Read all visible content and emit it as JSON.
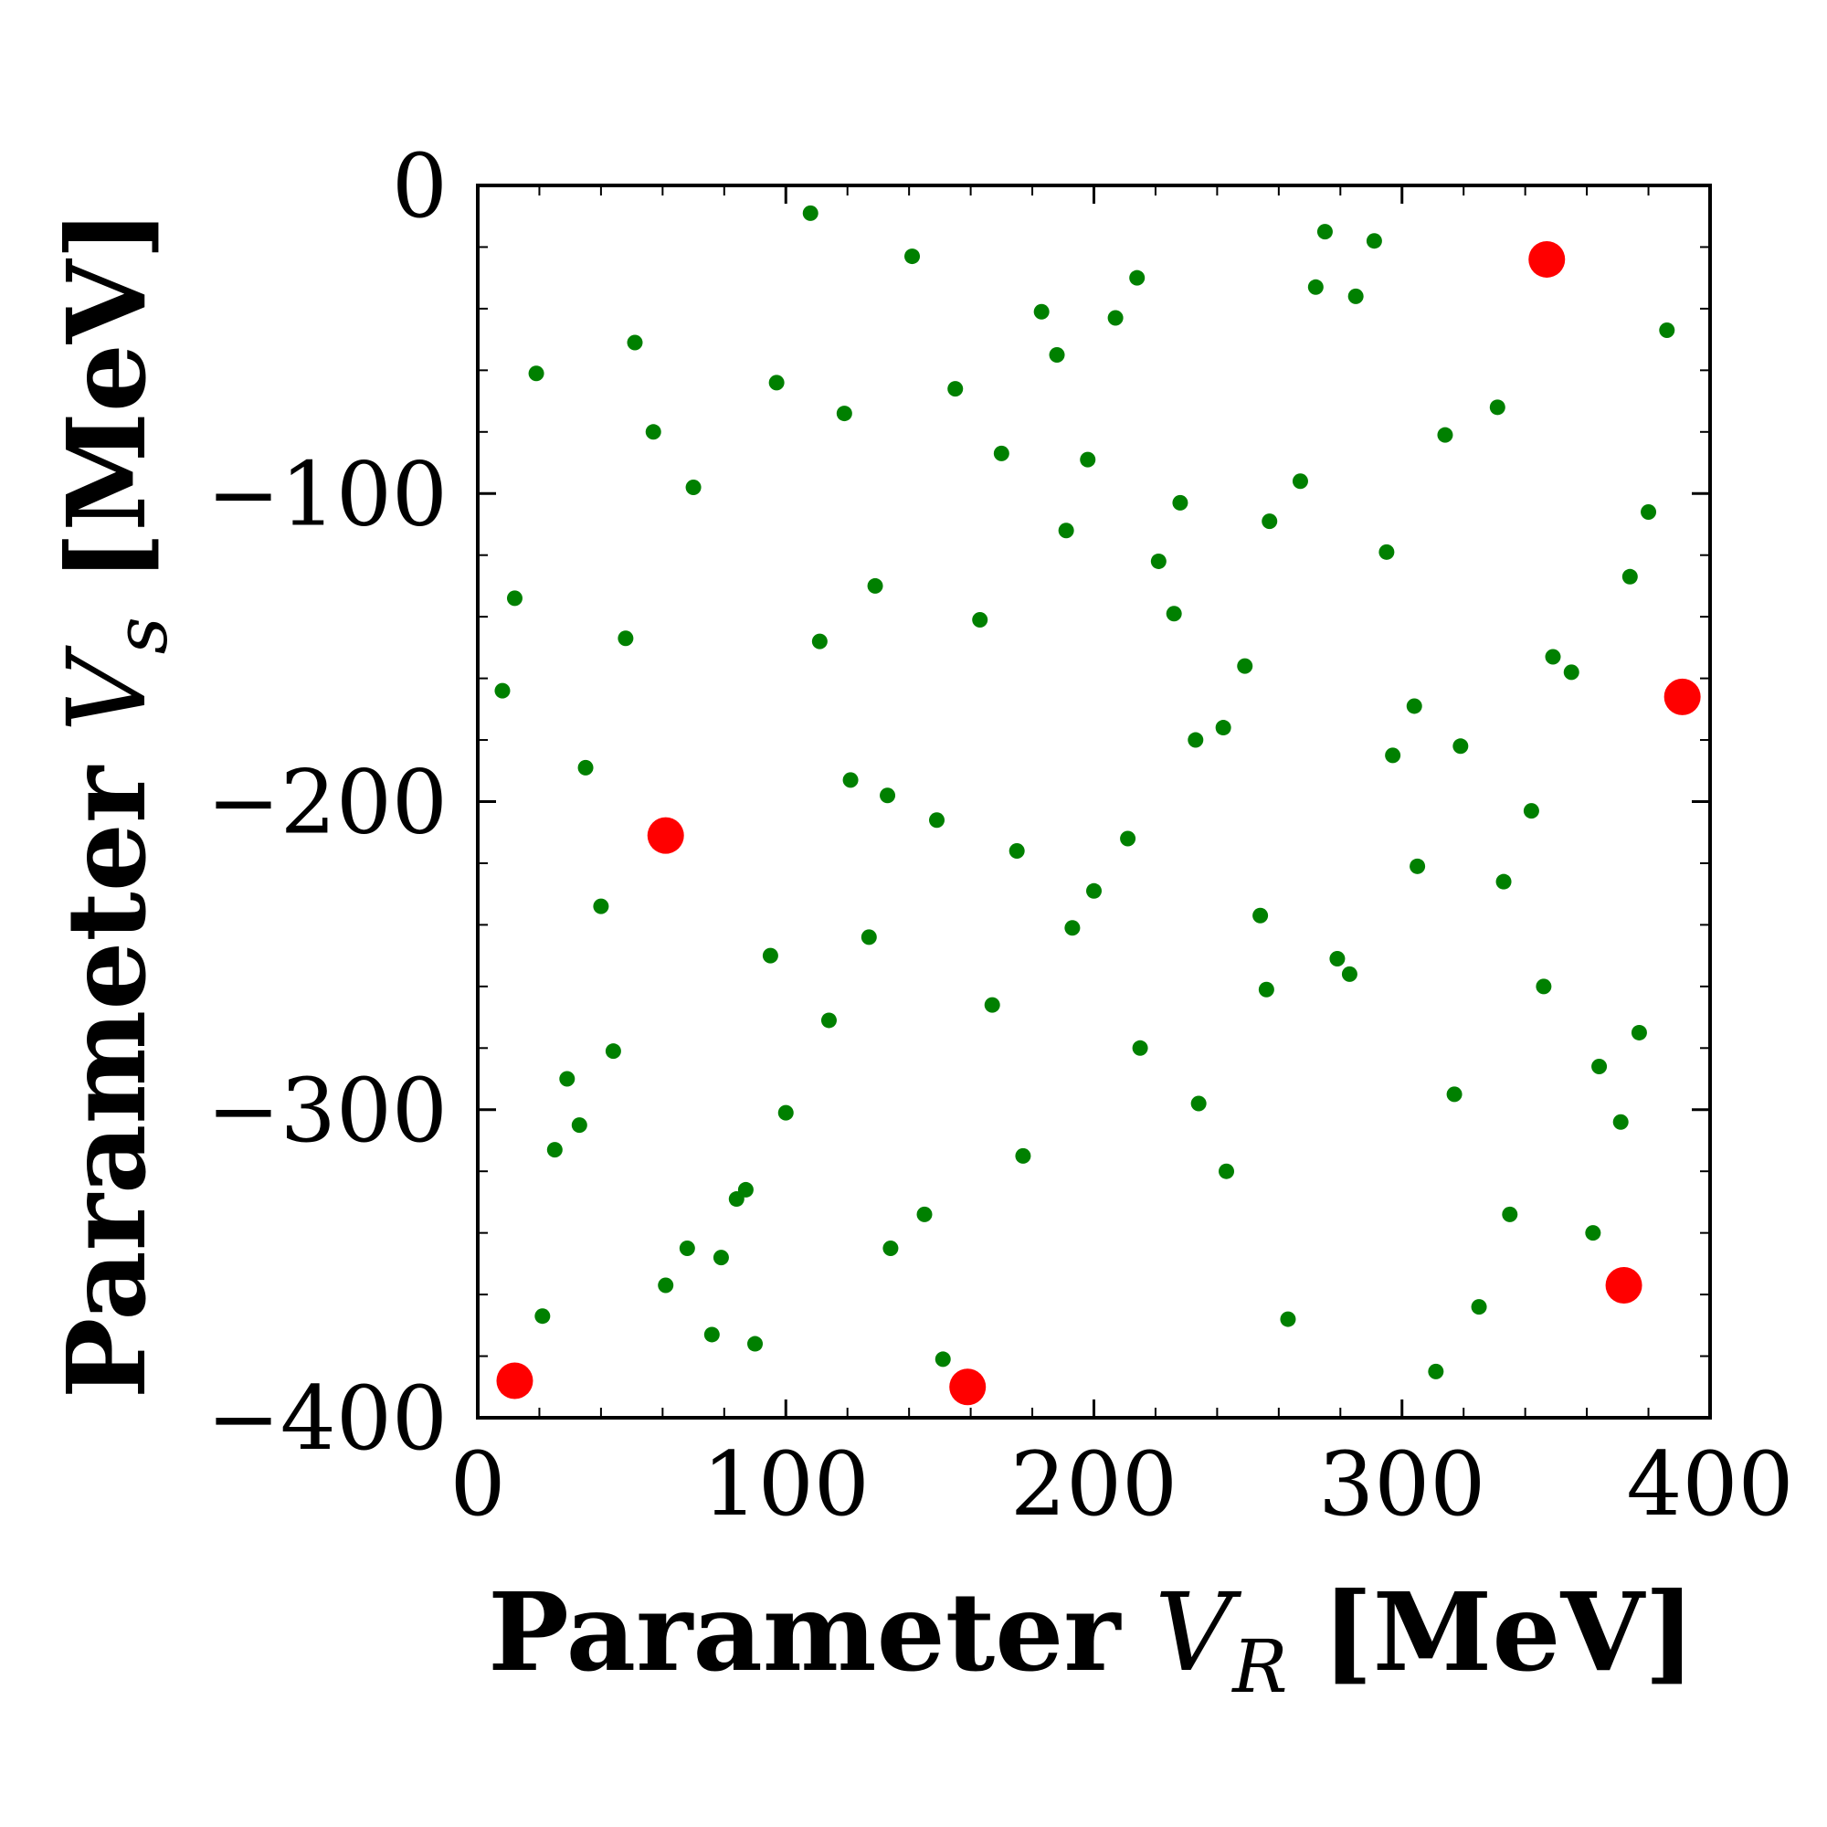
{
  "chart_data": {
    "type": "scatter",
    "xlabel": {
      "prefix": "Parameter",
      "symbol": "V",
      "subscript": "R",
      "unit": "[MeV]"
    },
    "ylabel": {
      "prefix": "Parameter",
      "symbol": "V",
      "subscript": "s",
      "unit": "[MeV]"
    },
    "xlim": [
      0,
      400
    ],
    "ylim": [
      -400,
      0
    ],
    "xticks": [
      {
        "value": 0,
        "label": "0"
      },
      {
        "value": 100,
        "label": "100"
      },
      {
        "value": 200,
        "label": "200"
      },
      {
        "value": 300,
        "label": "300"
      },
      {
        "value": 400,
        "label": "400"
      }
    ],
    "yticks": [
      {
        "value": 0,
        "label": "0"
      },
      {
        "value": -100,
        "label": "−100"
      },
      {
        "value": -200,
        "label": "−200"
      },
      {
        "value": -300,
        "label": "−300"
      },
      {
        "value": -400,
        "label": "−400"
      }
    ],
    "minor_tick_step": 20,
    "grid": false,
    "series": [
      {
        "color": "#008000",
        "marker": "small-circle",
        "points": [
          [
            108,
            -9
          ],
          [
            141,
            -23
          ],
          [
            275,
            -15
          ],
          [
            291,
            -18
          ],
          [
            214,
            -30
          ],
          [
            272,
            -33
          ],
          [
            285,
            -36
          ],
          [
            183,
            -41
          ],
          [
            207,
            -43
          ],
          [
            386,
            -47
          ],
          [
            51,
            -51
          ],
          [
            188,
            -55
          ],
          [
            19,
            -61
          ],
          [
            97,
            -64
          ],
          [
            155,
            -66
          ],
          [
            331,
            -72
          ],
          [
            119,
            -74
          ],
          [
            57,
            -80
          ],
          [
            314,
            -81
          ],
          [
            170,
            -87
          ],
          [
            198,
            -89
          ],
          [
            70,
            -98
          ],
          [
            267,
            -96
          ],
          [
            228,
            -103
          ],
          [
            380,
            -106
          ],
          [
            257,
            -109
          ],
          [
            191,
            -112
          ],
          [
            295,
            -119
          ],
          [
            221,
            -122
          ],
          [
            374,
            -127
          ],
          [
            12,
            -134
          ],
          [
            129,
            -130
          ],
          [
            226,
            -139
          ],
          [
            163,
            -141
          ],
          [
            48,
            -147
          ],
          [
            111,
            -148
          ],
          [
            349,
            -153
          ],
          [
            355,
            -158
          ],
          [
            249,
            -156
          ],
          [
            8,
            -164
          ],
          [
            304,
            -169
          ],
          [
            233,
            -180
          ],
          [
            242,
            -176
          ],
          [
            319,
            -182
          ],
          [
            297,
            -185
          ],
          [
            35,
            -189
          ],
          [
            121,
            -193
          ],
          [
            133,
            -198
          ],
          [
            342,
            -203
          ],
          [
            149,
            -206
          ],
          [
            211,
            -212
          ],
          [
            175,
            -216
          ],
          [
            305,
            -221
          ],
          [
            333,
            -226
          ],
          [
            200,
            -229
          ],
          [
            40,
            -234
          ],
          [
            193,
            -241
          ],
          [
            127,
            -244
          ],
          [
            254,
            -237
          ],
          [
            95,
            -250
          ],
          [
            279,
            -251
          ],
          [
            283,
            -256
          ],
          [
            256,
            -261
          ],
          [
            346,
            -260
          ],
          [
            167,
            -266
          ],
          [
            114,
            -271
          ],
          [
            377,
            -275
          ],
          [
            44,
            -281
          ],
          [
            215,
            -280
          ],
          [
            364,
            -286
          ],
          [
            29,
            -290
          ],
          [
            234,
            -298
          ],
          [
            317,
            -295
          ],
          [
            100,
            -301
          ],
          [
            33,
            -305
          ],
          [
            371,
            -304
          ],
          [
            25,
            -313
          ],
          [
            177,
            -315
          ],
          [
            243,
            -320
          ],
          [
            87,
            -326
          ],
          [
            84,
            -329
          ],
          [
            335,
            -334
          ],
          [
            145,
            -334
          ],
          [
            362,
            -340
          ],
          [
            68,
            -345
          ],
          [
            79,
            -348
          ],
          [
            134,
            -345
          ],
          [
            61,
            -357
          ],
          [
            325,
            -364
          ],
          [
            21,
            -367
          ],
          [
            76,
            -373
          ],
          [
            90,
            -376
          ],
          [
            263,
            -368
          ],
          [
            151,
            -381
          ],
          [
            311,
            -385
          ]
        ]
      },
      {
        "color": "#ff0000",
        "marker": "large-circle",
        "points": [
          [
            347,
            -24
          ],
          [
            391,
            -166
          ],
          [
            61,
            -211
          ],
          [
            372,
            -357
          ],
          [
            12,
            -388
          ],
          [
            159,
            -390
          ]
        ]
      }
    ]
  }
}
